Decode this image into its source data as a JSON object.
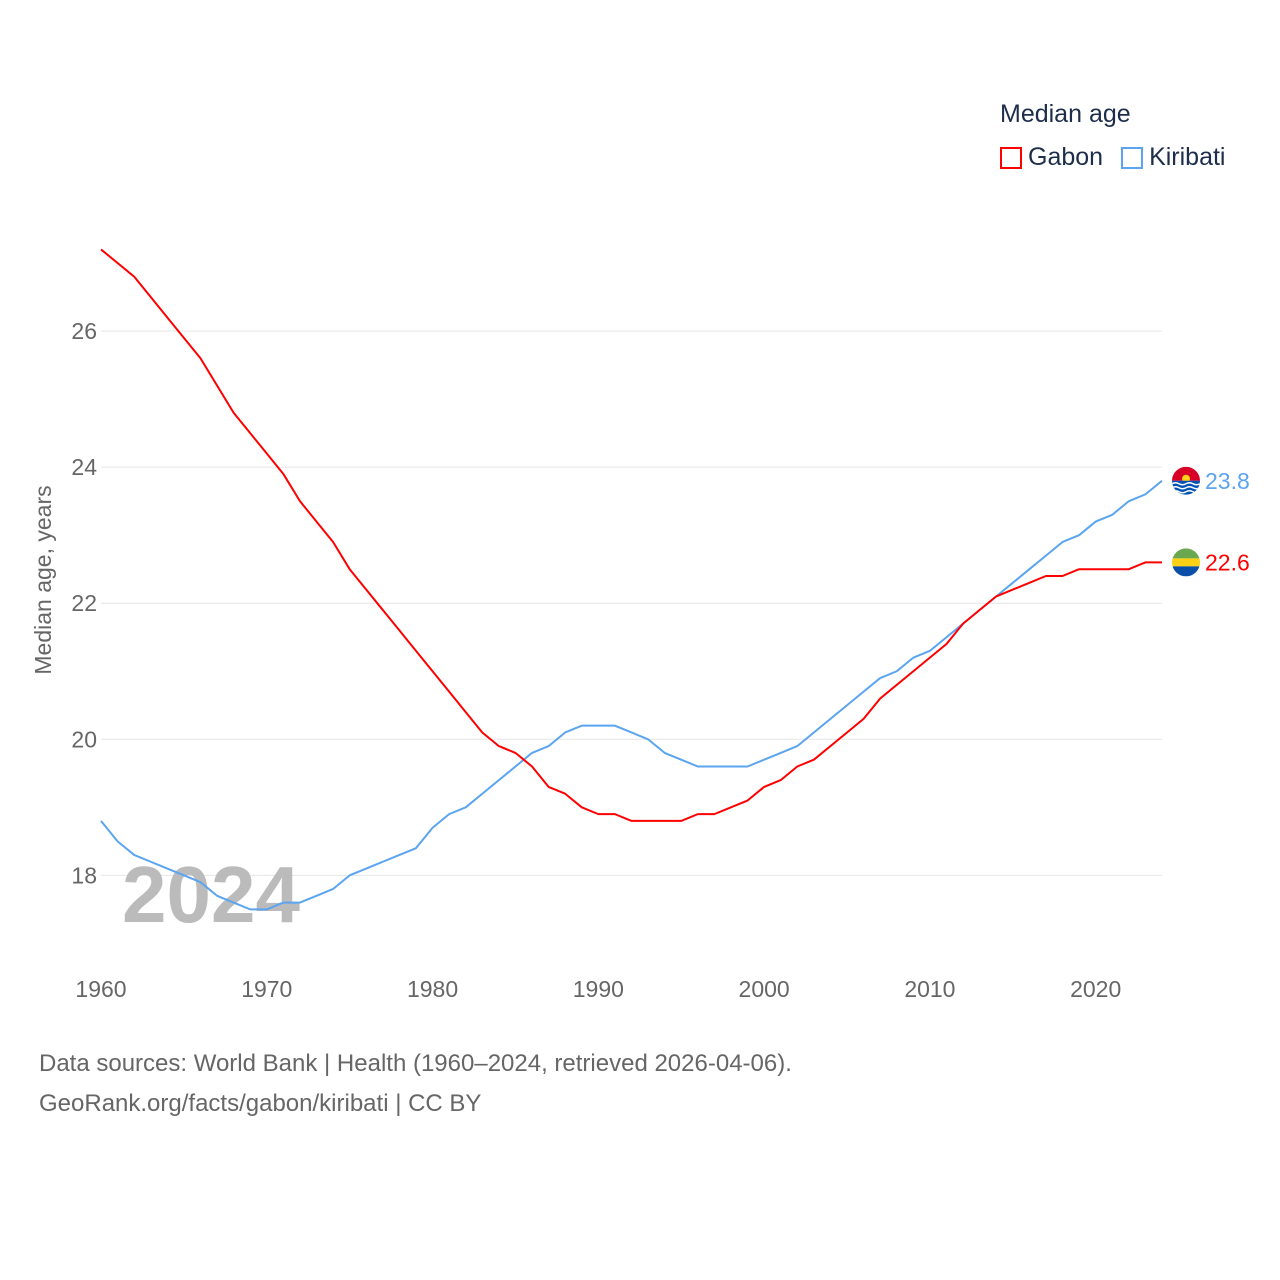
{
  "chart_data": {
    "type": "line",
    "title": "Median age",
    "xlabel": "",
    "ylabel": "Median age, years",
    "xlim": [
      1960,
      2024
    ],
    "ylim": [
      16.8,
      28
    ],
    "x_ticks": [
      "1960",
      "1970",
      "1980",
      "1990",
      "2000",
      "2010",
      "2020"
    ],
    "y_ticks": [
      "18",
      "20",
      "22",
      "24",
      "26"
    ],
    "grid": true,
    "legend_position": "top-right",
    "watermark_year": "2024",
    "x": [
      1960,
      1961,
      1962,
      1963,
      1964,
      1965,
      1966,
      1967,
      1968,
      1969,
      1970,
      1971,
      1972,
      1973,
      1974,
      1975,
      1976,
      1977,
      1978,
      1979,
      1980,
      1981,
      1982,
      1983,
      1984,
      1985,
      1986,
      1987,
      1988,
      1989,
      1990,
      1991,
      1992,
      1993,
      1994,
      1995,
      1996,
      1997,
      1998,
      1999,
      2000,
      2001,
      2002,
      2003,
      2004,
      2005,
      2006,
      2007,
      2008,
      2009,
      2010,
      2011,
      2012,
      2013,
      2014,
      2015,
      2016,
      2017,
      2018,
      2019,
      2020,
      2021,
      2022,
      2023,
      2024
    ],
    "series": [
      {
        "name": "Gabon",
        "color": "#ff0000",
        "end_label": "22.6",
        "flag": "gabon-flag",
        "values": [
          27.2,
          27.0,
          26.8,
          26.5,
          26.2,
          25.9,
          25.6,
          25.2,
          24.8,
          24.5,
          24.2,
          23.9,
          23.5,
          23.2,
          22.9,
          22.5,
          22.2,
          21.9,
          21.6,
          21.3,
          21.0,
          20.7,
          20.4,
          20.1,
          19.9,
          19.8,
          19.6,
          19.3,
          19.2,
          19.0,
          18.9,
          18.9,
          18.8,
          18.8,
          18.8,
          18.8,
          18.9,
          18.9,
          19.0,
          19.1,
          19.3,
          19.4,
          19.6,
          19.7,
          19.9,
          20.1,
          20.3,
          20.6,
          20.8,
          21.0,
          21.2,
          21.4,
          21.7,
          21.9,
          22.1,
          22.2,
          22.3,
          22.4,
          22.4,
          22.5,
          22.5,
          22.5,
          22.5,
          22.6,
          22.6
        ]
      },
      {
        "name": "Kiribati",
        "color": "#5ba4f0",
        "end_label": "23.8",
        "flag": "kiribati-flag",
        "values": [
          18.8,
          18.5,
          18.3,
          18.2,
          18.1,
          18.0,
          17.9,
          17.7,
          17.6,
          17.5,
          17.5,
          17.6,
          17.6,
          17.7,
          17.8,
          18.0,
          18.1,
          18.2,
          18.3,
          18.4,
          18.7,
          18.9,
          19.0,
          19.2,
          19.4,
          19.6,
          19.8,
          19.9,
          20.1,
          20.2,
          20.2,
          20.2,
          20.1,
          20.0,
          19.8,
          19.7,
          19.6,
          19.6,
          19.6,
          19.6,
          19.7,
          19.8,
          19.9,
          20.1,
          20.3,
          20.5,
          20.7,
          20.9,
          21.0,
          21.2,
          21.3,
          21.5,
          21.7,
          21.9,
          22.1,
          22.3,
          22.5,
          22.7,
          22.9,
          23.0,
          23.2,
          23.3,
          23.5,
          23.6,
          23.8
        ]
      }
    ]
  },
  "footer": {
    "line1": "Data sources: World Bank | Health (1960–2024, retrieved 2026-04-06).",
    "line2": "GeoRank.org/facts/gabon/kiribati | CC BY"
  }
}
